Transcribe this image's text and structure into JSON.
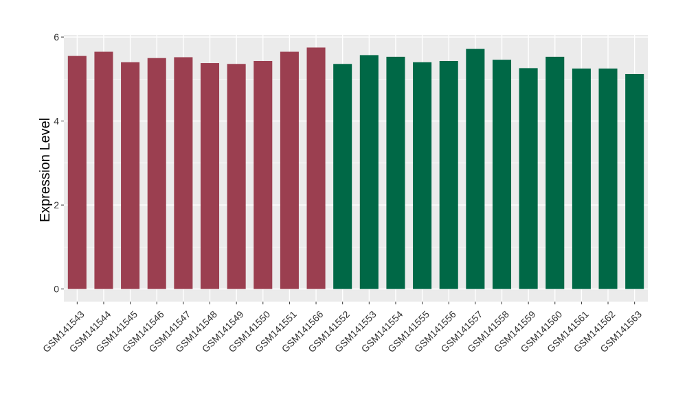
{
  "chart_data": {
    "type": "bar",
    "ylabel": "Expression Level",
    "xlabel": "",
    "ylim": [
      -0.3,
      6.05
    ],
    "yticks": [
      0,
      2,
      4,
      6
    ],
    "grid": true,
    "colors": {
      "groupA": "#9b3f50",
      "groupB": "#006846",
      "panel": "#ebebeb",
      "grid": "#ffffff"
    },
    "categories": [
      "GSM141543",
      "GSM141544",
      "GSM141545",
      "GSM141546",
      "GSM141547",
      "GSM141548",
      "GSM141549",
      "GSM141550",
      "GSM141551",
      "GSM141566",
      "GSM141552",
      "GSM141553",
      "GSM141554",
      "GSM141555",
      "GSM141556",
      "GSM141557",
      "GSM141558",
      "GSM141559",
      "GSM141560",
      "GSM141561",
      "GSM141562",
      "GSM141563"
    ],
    "values": [
      5.55,
      5.65,
      5.4,
      5.5,
      5.52,
      5.38,
      5.36,
      5.43,
      5.65,
      5.75,
      5.36,
      5.57,
      5.53,
      5.4,
      5.43,
      5.72,
      5.46,
      5.26,
      5.53,
      5.25,
      5.25,
      5.12
    ],
    "groups": [
      "A",
      "A",
      "A",
      "A",
      "A",
      "A",
      "A",
      "A",
      "A",
      "A",
      "B",
      "B",
      "B",
      "B",
      "B",
      "B",
      "B",
      "B",
      "B",
      "B",
      "B",
      "B"
    ]
  }
}
